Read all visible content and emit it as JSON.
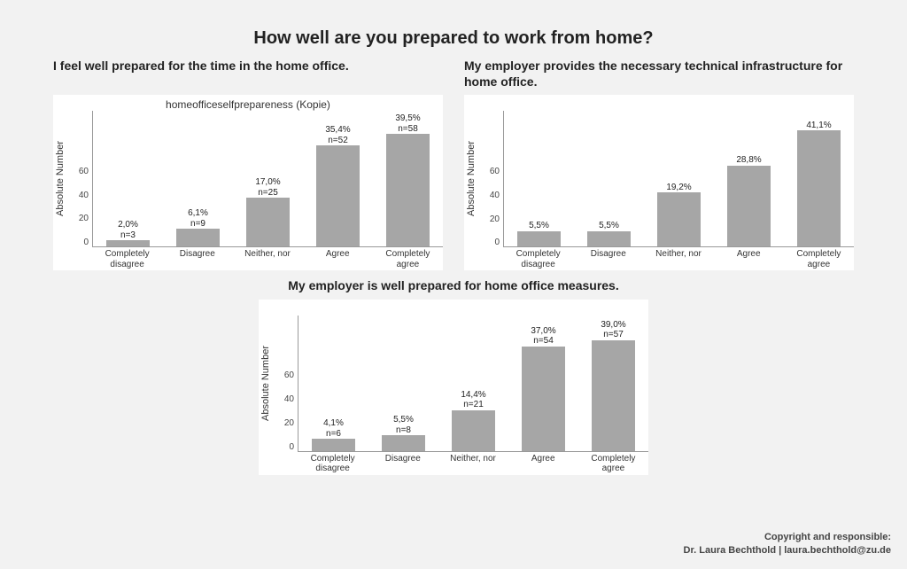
{
  "background_color": "#f2f2f2",
  "panel_background": "#ffffff",
  "bar_color": "#a6a6a6",
  "axis_color": "#999999",
  "text_color": "#222222",
  "page_title": "How well are you prepared to work from home?",
  "page_title_fontsize": 20,
  "y_axis_label": "Absolute Number",
  "label_fontsize": 11,
  "tick_fontsize": 10,
  "categories": [
    "Completely disagree",
    "Disagree",
    "Neither, nor",
    "Agree",
    "Completely agree"
  ],
  "charts": {
    "left": {
      "heading": "I feel well prepared for the time in the home office.",
      "inner_title": "homeofficeselfprepareness (Kopie)",
      "type": "bar",
      "ylim": [
        0,
        70
      ],
      "yticks": [
        0,
        20,
        40,
        60
      ],
      "bar_width": 0.62,
      "bars": [
        {
          "pct": "2,0%",
          "n": "n=3",
          "value": 3
        },
        {
          "pct": "6,1%",
          "n": "n=9",
          "value": 9
        },
        {
          "pct": "17,0%",
          "n": "n=25",
          "value": 25
        },
        {
          "pct": "35,4%",
          "n": "n=52",
          "value": 52
        },
        {
          "pct": "39,5%",
          "n": "n=58",
          "value": 58
        }
      ]
    },
    "right": {
      "heading": "My employer provides the necessary technical infrastructure for home office.",
      "inner_title": "",
      "type": "bar",
      "ylim": [
        0,
        70
      ],
      "yticks": [
        0,
        20,
        40,
        60
      ],
      "bar_width": 0.62,
      "bars": [
        {
          "pct": "5,5%",
          "n": "",
          "value": 8
        },
        {
          "pct": "5,5%",
          "n": "",
          "value": 8
        },
        {
          "pct": "19,2%",
          "n": "",
          "value": 28
        },
        {
          "pct": "28,8%",
          "n": "",
          "value": 42
        },
        {
          "pct": "41,1%",
          "n": "",
          "value": 60
        }
      ]
    },
    "bottom": {
      "heading": "My employer is well prepared for home office measures.",
      "inner_title": "",
      "type": "bar",
      "ylim": [
        0,
        70
      ],
      "yticks": [
        0,
        20,
        40,
        60
      ],
      "bar_width": 0.62,
      "bars": [
        {
          "pct": "4,1%",
          "n": "n=6",
          "value": 6
        },
        {
          "pct": "5,5%",
          "n": "n=8",
          "value": 8
        },
        {
          "pct": "14,4%",
          "n": "n=21",
          "value": 21
        },
        {
          "pct": "37,0%",
          "n": "n=54",
          "value": 54
        },
        {
          "pct": "39,0%",
          "n": "n=57",
          "value": 57
        }
      ]
    }
  },
  "copyright": {
    "line1": "Copyright and responsible:",
    "line2": "Dr. Laura Bechthold | laura.bechthold@zu.de"
  }
}
